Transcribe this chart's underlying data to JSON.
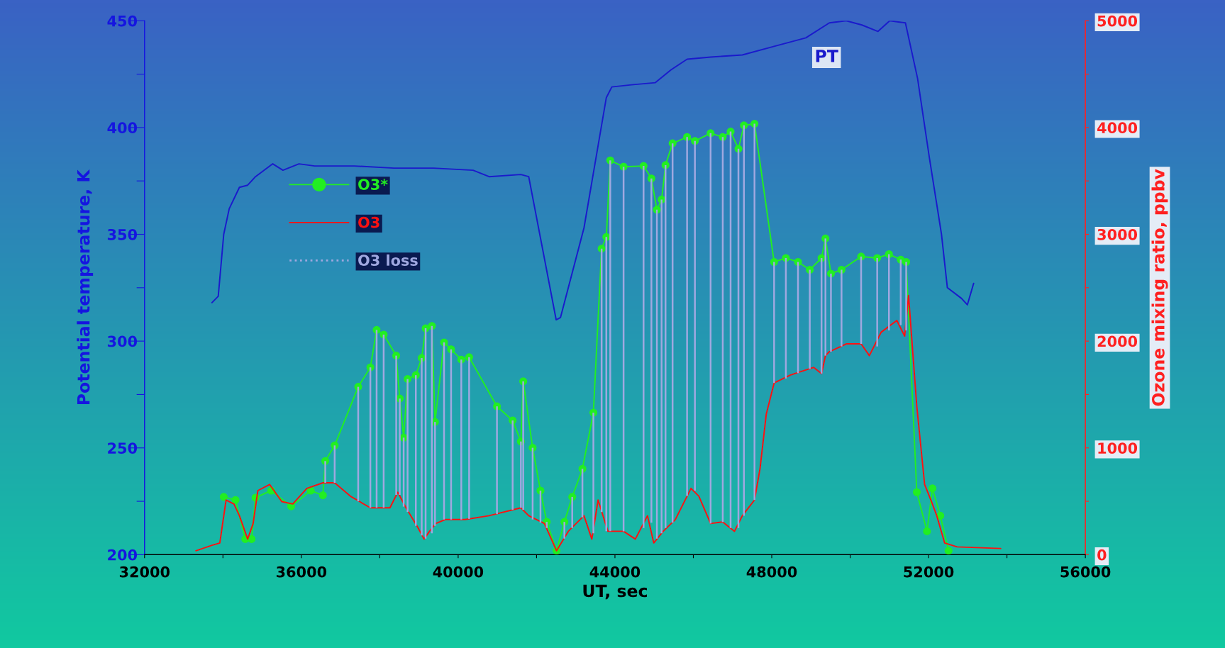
{
  "chart_data": {
    "type": "line",
    "xlabel": "UT, sec",
    "ylabel": "Potential temperature, K",
    "y2label": "Ozone mixing ratio, ppbv",
    "xlim": [
      32000,
      56000
    ],
    "xticks": [
      32000,
      {
        "value": 34000,
        "label": null
      },
      36000,
      {
        "value": 38000,
        "label": null
      },
      40000,
      {
        "value": 42000,
        "label": null
      },
      44000,
      {
        "value": 46000,
        "label": null
      },
      48000,
      {
        "value": 50000,
        "label": null
      },
      52000,
      {
        "value": 54000,
        "label": null
      },
      56000
    ],
    "ylim": [
      200,
      450
    ],
    "yticks": [
      200,
      {
        "value": 225,
        "label": null
      },
      250,
      {
        "value": 275,
        "label": null
      },
      300,
      {
        "value": 325,
        "label": null
      },
      350,
      {
        "value": 375,
        "label": null
      },
      400,
      {
        "value": 425,
        "label": null
      },
      450
    ],
    "y2lim": [
      0,
      5000
    ],
    "y2ticks": [
      0,
      {
        "value": 500,
        "label": null
      },
      1000,
      {
        "value": 1500,
        "label": null
      },
      2000,
      {
        "value": 2500,
        "label": null
      },
      3000,
      {
        "value": 3500,
        "label": null
      },
      4000,
      {
        "value": 4500,
        "label": null
      },
      5000
    ],
    "grid": false,
    "legend": "left",
    "series": [
      {
        "name": "PT",
        "color": "#1a1acc",
        "marker": "none",
        "line_style": "solid",
        "x": [
          33720,
          33880,
          34020,
          34160,
          34420,
          34630,
          34830,
          35270,
          35530,
          35940,
          36340,
          37350,
          38360,
          39370,
          40380,
          40790,
          41600,
          41800,
          42500,
          42610,
          43210,
          43780,
          43920,
          44420,
          45030,
          45430,
          45840,
          46440,
          47250,
          48060,
          48870,
          49470,
          49900,
          50300,
          50710,
          51010,
          51410,
          51720,
          52020,
          52330,
          52480,
          52840,
          52990,
          53150
        ],
        "values": [
          318,
          321,
          350,
          362,
          372,
          373,
          377,
          383,
          380,
          383,
          382,
          382,
          381,
          381,
          380,
          377,
          378,
          377,
          310,
          311,
          353,
          414,
          419,
          420,
          421,
          427,
          432,
          433,
          434,
          438,
          442,
          449,
          450,
          448,
          445,
          450,
          449,
          423,
          386,
          350,
          325,
          320,
          317,
          327
        ]
      },
      {
        "name": "O3*",
        "axis": "y2",
        "color": "#22ee22",
        "marker": "circle",
        "line_style": "solid",
        "x": [
          34020,
          34320,
          34570,
          34730,
          34830,
          35230,
          35740,
          36240,
          36550,
          36610,
          36850,
          37450,
          37760,
          37920,
          38100,
          38420,
          38510,
          38610,
          38710,
          38920,
          39070,
          39170,
          39330,
          39410,
          39640,
          39820,
          40080,
          40280,
          40990,
          41390,
          41600,
          41660,
          41900,
          42100,
          42260,
          42510,
          42710,
          42910,
          43170,
          43450,
          43660,
          43780,
          43880,
          44220,
          44730,
          44930,
          45070,
          45190,
          45290,
          45470,
          45840,
          46040,
          46440,
          46750,
          46950,
          47150,
          47290,
          47560,
          48060,
          48360,
          48670,
          48970,
          49270,
          49370,
          49510,
          49780,
          50280,
          50690,
          50990,
          51290,
          51430,
          51700,
          51960,
          52100,
          52300,
          52510
        ],
        "values": [
          541,
          512,
          146,
          146,
          534,
          600,
          453,
          600,
          556,
          877,
          1023,
          1572,
          1754,
          2105,
          2061,
          1864,
          1462,
          1096,
          1645,
          1681,
          1842,
          2120,
          2142,
          1243,
          1988,
          1923,
          1827,
          1849,
          1389,
          1257,
          1060,
          1623,
          1001,
          600,
          307,
          37,
          307,
          541,
          804,
          1330,
          2866,
          2975,
          3692,
          3633,
          3640,
          3523,
          3231,
          3326,
          3648,
          3852,
          3911,
          3874,
          3947,
          3911,
          3962,
          3801,
          4020,
          4035,
          2741,
          2778,
          2741,
          2668,
          2778,
          2961,
          2632,
          2668,
          2792,
          2778,
          2814,
          2763,
          2741,
          585,
          219,
          621,
          365,
          37
        ]
      },
      {
        "name": "O3",
        "axis": "y2",
        "color": "#ff1111",
        "marker": "none",
        "line_style": "solid",
        "x": [
          33310,
          33720,
          33920,
          34080,
          34280,
          34420,
          34630,
          34770,
          34890,
          35190,
          35500,
          35780,
          36140,
          36550,
          36850,
          37250,
          37760,
          38260,
          38460,
          38670,
          38970,
          39130,
          39270,
          39430,
          39670,
          40180,
          40790,
          41600,
          41800,
          42200,
          42510,
          42810,
          43210,
          43410,
          43570,
          43820,
          44220,
          44520,
          44830,
          44990,
          45230,
          45540,
          45740,
          45940,
          46140,
          46440,
          46750,
          47050,
          47250,
          47560,
          47700,
          47860,
          48060,
          48470,
          49070,
          49270,
          49370,
          49470,
          49900,
          50280,
          50490,
          50790,
          51190,
          51390,
          51490,
          51700,
          51900,
          52060,
          52210,
          52410,
          52730,
          53840
        ],
        "values": [
          37,
          88,
          110,
          512,
          475,
          365,
          146,
          292,
          600,
          658,
          497,
          475,
          621,
          673,
          673,
          548,
          439,
          439,
          585,
          439,
          256,
          146,
          219,
          292,
          329,
          329,
          365,
          439,
          365,
          292,
          37,
          219,
          365,
          146,
          512,
          219,
          219,
          146,
          365,
          110,
          219,
          329,
          475,
          621,
          548,
          292,
          307,
          219,
          365,
          512,
          804,
          1316,
          1608,
          1681,
          1754,
          1696,
          1864,
          1901,
          1974,
          1974,
          1864,
          2083,
          2193,
          2047,
          2427,
          1389,
          658,
          512,
          365,
          110,
          73,
          58
        ]
      },
      {
        "name": "O3 loss",
        "type": "bar",
        "axis": "y2",
        "color": "#9fa8e0",
        "x": [
          36610,
          36850,
          37450,
          37760,
          37920,
          38100,
          38420,
          38510,
          38610,
          38710,
          38920,
          39070,
          39170,
          39330,
          39410,
          39640,
          39820,
          40080,
          40280,
          40990,
          41390,
          41600,
          41660,
          41900,
          42100,
          42260,
          42710,
          42910,
          43170,
          43450,
          43660,
          43780,
          43880,
          44220,
          44730,
          44930,
          45070,
          45190,
          45290,
          45470,
          45840,
          46040,
          46440,
          46750,
          46950,
          47150,
          47290,
          47560,
          48060,
          48360,
          48670,
          48970,
          49270,
          49370,
          49510,
          49780,
          50280,
          50690,
          50990,
          51290,
          51430
        ],
        "base": [
          673,
          673,
          500,
          439,
          440,
          440,
          560,
          560,
          450,
          400,
          270,
          180,
          150,
          200,
          270,
          329,
          329,
          329,
          335,
          380,
          420,
          439,
          420,
          330,
          300,
          250,
          150,
          250,
          350,
          200,
          400,
          220,
          220,
          219,
          250,
          300,
          150,
          200,
          250,
          300,
          550,
          600,
          292,
          307,
          250,
          250,
          365,
          512,
          1608,
          1650,
          1700,
          1740,
          1696,
          1864,
          1901,
          1950,
          1974,
          1950,
          2100,
          2150,
          2100
        ],
        "values": [
          204,
          350,
          1072,
          1315,
          1665,
          1621,
          1304,
          902,
          646,
          1245,
          1411,
          1662,
          1970,
          1942,
          973,
          1659,
          1594,
          1498,
          1514,
          1009,
          837,
          621,
          1203,
          671,
          300,
          57,
          157,
          291,
          454,
          1130,
          2466,
          2755,
          3472,
          3414,
          3390,
          3223,
          3081,
          3126,
          3398,
          3552,
          3361,
          3274,
          3655,
          3604,
          3712,
          3551,
          3655,
          3523,
          1133,
          1128,
          1041,
          928,
          1082,
          1097,
          731,
          718,
          818,
          828,
          714,
          613,
          641
        ]
      }
    ]
  }
}
